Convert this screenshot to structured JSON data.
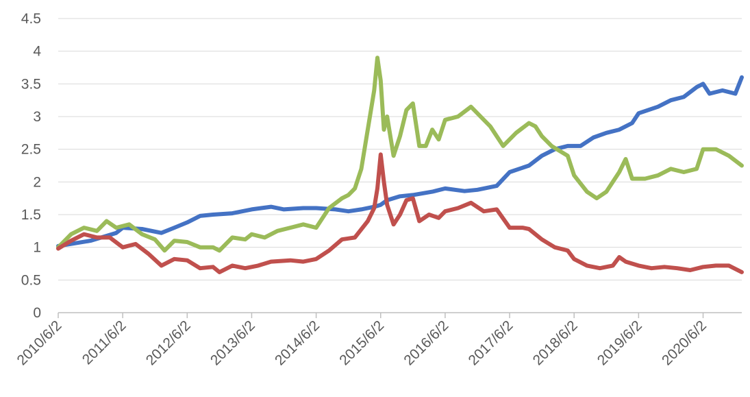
{
  "chart_data": {
    "type": "line",
    "title": "",
    "xlabel": "",
    "ylabel": "",
    "ylim": [
      0,
      4.5
    ],
    "y_ticks": [
      "0",
      "0.5",
      "1",
      "1.5",
      "2",
      "2.5",
      "3",
      "3.5",
      "4",
      "4.5"
    ],
    "x_ticks": [
      "2010/6/2",
      "2011/6/2",
      "2012/6/2",
      "2013/6/2",
      "2014/6/2",
      "2015/6/2",
      "2016/6/2",
      "2017/6/2",
      "2018/6/2",
      "2019/6/2",
      "2020/6/2"
    ],
    "x_range": [
      2010.0,
      2020.6
    ],
    "grid": true,
    "legend": "none",
    "series": [
      {
        "color": "#4472c4",
        "points": [
          [
            2010.0,
            1.02
          ],
          [
            2010.5,
            1.1
          ],
          [
            2010.9,
            1.22
          ],
          [
            2011.0,
            1.3
          ],
          [
            2011.3,
            1.28
          ],
          [
            2011.6,
            1.22
          ],
          [
            2011.8,
            1.3
          ],
          [
            2012.0,
            1.38
          ],
          [
            2012.2,
            1.48
          ],
          [
            2012.4,
            1.5
          ],
          [
            2012.7,
            1.52
          ],
          [
            2013.0,
            1.58
          ],
          [
            2013.3,
            1.62
          ],
          [
            2013.5,
            1.58
          ],
          [
            2013.8,
            1.6
          ],
          [
            2014.0,
            1.6
          ],
          [
            2014.3,
            1.58
          ],
          [
            2014.5,
            1.55
          ],
          [
            2014.7,
            1.58
          ],
          [
            2014.9,
            1.62
          ],
          [
            2015.0,
            1.65
          ],
          [
            2015.1,
            1.72
          ],
          [
            2015.3,
            1.78
          ],
          [
            2015.5,
            1.8
          ],
          [
            2015.8,
            1.85
          ],
          [
            2016.0,
            1.9
          ],
          [
            2016.3,
            1.86
          ],
          [
            2016.5,
            1.88
          ],
          [
            2016.8,
            1.94
          ],
          [
            2017.0,
            2.15
          ],
          [
            2017.3,
            2.25
          ],
          [
            2017.5,
            2.4
          ],
          [
            2017.7,
            2.5
          ],
          [
            2017.9,
            2.55
          ],
          [
            2018.1,
            2.55
          ],
          [
            2018.3,
            2.68
          ],
          [
            2018.5,
            2.75
          ],
          [
            2018.7,
            2.8
          ],
          [
            2018.9,
            2.9
          ],
          [
            2019.0,
            3.05
          ],
          [
            2019.3,
            3.15
          ],
          [
            2019.5,
            3.25
          ],
          [
            2019.7,
            3.3
          ],
          [
            2019.9,
            3.45
          ],
          [
            2020.0,
            3.5
          ],
          [
            2020.1,
            3.35
          ],
          [
            2020.3,
            3.4
          ],
          [
            2020.5,
            3.35
          ],
          [
            2020.6,
            3.6
          ]
        ]
      },
      {
        "color": "#9bbb59",
        "points": [
          [
            2010.0,
            1.0
          ],
          [
            2010.2,
            1.2
          ],
          [
            2010.4,
            1.3
          ],
          [
            2010.6,
            1.25
          ],
          [
            2010.75,
            1.4
          ],
          [
            2010.9,
            1.3
          ],
          [
            2011.1,
            1.35
          ],
          [
            2011.3,
            1.2
          ],
          [
            2011.5,
            1.12
          ],
          [
            2011.65,
            0.95
          ],
          [
            2011.8,
            1.1
          ],
          [
            2012.0,
            1.08
          ],
          [
            2012.2,
            1.0
          ],
          [
            2012.4,
            1.0
          ],
          [
            2012.5,
            0.95
          ],
          [
            2012.7,
            1.15
          ],
          [
            2012.9,
            1.12
          ],
          [
            2013.0,
            1.2
          ],
          [
            2013.2,
            1.15
          ],
          [
            2013.4,
            1.25
          ],
          [
            2013.6,
            1.3
          ],
          [
            2013.8,
            1.35
          ],
          [
            2014.0,
            1.3
          ],
          [
            2014.2,
            1.6
          ],
          [
            2014.4,
            1.75
          ],
          [
            2014.5,
            1.8
          ],
          [
            2014.6,
            1.9
          ],
          [
            2014.7,
            2.2
          ],
          [
            2014.8,
            2.8
          ],
          [
            2014.9,
            3.4
          ],
          [
            2014.95,
            3.9
          ],
          [
            2015.0,
            3.55
          ],
          [
            2015.05,
            2.8
          ],
          [
            2015.1,
            3.0
          ],
          [
            2015.2,
            2.4
          ],
          [
            2015.3,
            2.7
          ],
          [
            2015.4,
            3.1
          ],
          [
            2015.5,
            3.2
          ],
          [
            2015.6,
            2.55
          ],
          [
            2015.7,
            2.55
          ],
          [
            2015.8,
            2.8
          ],
          [
            2015.9,
            2.65
          ],
          [
            2016.0,
            2.95
          ],
          [
            2016.2,
            3.0
          ],
          [
            2016.4,
            3.15
          ],
          [
            2016.6,
            2.95
          ],
          [
            2016.7,
            2.85
          ],
          [
            2016.9,
            2.55
          ],
          [
            2017.1,
            2.75
          ],
          [
            2017.3,
            2.9
          ],
          [
            2017.4,
            2.85
          ],
          [
            2017.5,
            2.7
          ],
          [
            2017.65,
            2.55
          ],
          [
            2017.9,
            2.4
          ],
          [
            2018.0,
            2.1
          ],
          [
            2018.2,
            1.85
          ],
          [
            2018.35,
            1.75
          ],
          [
            2018.5,
            1.85
          ],
          [
            2018.7,
            2.15
          ],
          [
            2018.8,
            2.35
          ],
          [
            2018.9,
            2.05
          ],
          [
            2019.1,
            2.05
          ],
          [
            2019.3,
            2.1
          ],
          [
            2019.5,
            2.2
          ],
          [
            2019.7,
            2.15
          ],
          [
            2019.9,
            2.2
          ],
          [
            2020.0,
            2.5
          ],
          [
            2020.2,
            2.5
          ],
          [
            2020.4,
            2.4
          ],
          [
            2020.6,
            2.25
          ]
        ]
      },
      {
        "color": "#c0504d",
        "points": [
          [
            2010.0,
            0.98
          ],
          [
            2010.2,
            1.1
          ],
          [
            2010.4,
            1.2
          ],
          [
            2010.6,
            1.15
          ],
          [
            2010.8,
            1.15
          ],
          [
            2011.0,
            1.0
          ],
          [
            2011.2,
            1.05
          ],
          [
            2011.4,
            0.9
          ],
          [
            2011.6,
            0.72
          ],
          [
            2011.8,
            0.82
          ],
          [
            2012.0,
            0.8
          ],
          [
            2012.2,
            0.68
          ],
          [
            2012.4,
            0.7
          ],
          [
            2012.5,
            0.62
          ],
          [
            2012.7,
            0.72
          ],
          [
            2012.9,
            0.68
          ],
          [
            2013.1,
            0.72
          ],
          [
            2013.3,
            0.78
          ],
          [
            2013.6,
            0.8
          ],
          [
            2013.8,
            0.78
          ],
          [
            2014.0,
            0.82
          ],
          [
            2014.2,
            0.95
          ],
          [
            2014.4,
            1.12
          ],
          [
            2014.6,
            1.15
          ],
          [
            2014.8,
            1.4
          ],
          [
            2014.9,
            1.6
          ],
          [
            2014.95,
            1.9
          ],
          [
            2015.0,
            2.42
          ],
          [
            2015.05,
            2.0
          ],
          [
            2015.1,
            1.65
          ],
          [
            2015.2,
            1.35
          ],
          [
            2015.3,
            1.5
          ],
          [
            2015.4,
            1.72
          ],
          [
            2015.5,
            1.75
          ],
          [
            2015.6,
            1.4
          ],
          [
            2015.75,
            1.5
          ],
          [
            2015.9,
            1.45
          ],
          [
            2016.0,
            1.55
          ],
          [
            2016.2,
            1.6
          ],
          [
            2016.4,
            1.68
          ],
          [
            2016.6,
            1.55
          ],
          [
            2016.8,
            1.58
          ],
          [
            2017.0,
            1.3
          ],
          [
            2017.2,
            1.3
          ],
          [
            2017.3,
            1.28
          ],
          [
            2017.5,
            1.12
          ],
          [
            2017.7,
            1.0
          ],
          [
            2017.9,
            0.95
          ],
          [
            2018.0,
            0.82
          ],
          [
            2018.2,
            0.72
          ],
          [
            2018.4,
            0.68
          ],
          [
            2018.6,
            0.72
          ],
          [
            2018.7,
            0.85
          ],
          [
            2018.8,
            0.78
          ],
          [
            2019.0,
            0.72
          ],
          [
            2019.2,
            0.68
          ],
          [
            2019.4,
            0.7
          ],
          [
            2019.6,
            0.68
          ],
          [
            2019.8,
            0.65
          ],
          [
            2020.0,
            0.7
          ],
          [
            2020.2,
            0.72
          ],
          [
            2020.4,
            0.72
          ],
          [
            2020.6,
            0.62
          ]
        ]
      }
    ]
  }
}
